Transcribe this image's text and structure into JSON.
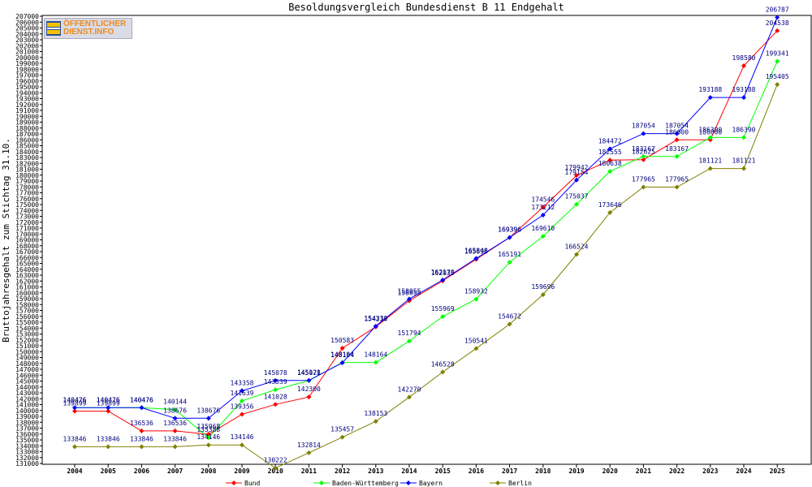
{
  "logo": {
    "line1": "ÖFFENTLICHER",
    "line2": "DIENST.INFO",
    "colors": {
      "text": "#f08a1c",
      "stripe_blue": "#2d4d9a",
      "stripe_yellow": "#f3c200",
      "stripe_white": "#ffffff"
    }
  },
  "chart_data": {
    "type": "line",
    "title": "Besoldungsvergleich Bundesdienst B 11 Endgehalt",
    "xlabel": "",
    "ylabel": "Bruttojahresgehalt zum Stichtag 31.10.",
    "x": [
      "2004",
      "2005",
      "2006",
      "2007",
      "2008",
      "2009",
      "2010",
      "2011",
      "2012",
      "2013",
      "2014",
      "2015",
      "2016",
      "2017",
      "2018",
      "2019",
      "2020",
      "2021",
      "2022",
      "2023",
      "2024",
      "2025"
    ],
    "ylim": [
      131000,
      207000
    ],
    "ytick_step": 1000,
    "grid": false,
    "legend_position": "bottom",
    "series": [
      {
        "name": "Bund",
        "color": "#ff0000",
        "values": [
          139899,
          139899,
          136536,
          136536,
          135968,
          139356,
          141028,
          142300,
          150583,
          154210,
          158655,
          162035,
          165696,
          169396,
          174546,
          179942,
          182555,
          182625,
          186000,
          186000,
          198580,
          204538
        ]
      },
      {
        "name": "Baden-Württemberg",
        "color": "#00ff00",
        "values": [
          140476,
          140476,
          140476,
          140144,
          135388,
          141639,
          143539,
          145078,
          148164,
          148164,
          151794,
          155969,
          158932,
          165191,
          169610,
          175037,
          180638,
          183167,
          183167,
          186390,
          186390,
          199341
        ]
      },
      {
        "name": "Bayern",
        "color": "#0000ff",
        "values": [
          140476,
          140476,
          140476,
          138676,
          138676,
          143358,
          145078,
          145121,
          148104,
          154333,
          158955,
          162170,
          165848,
          169396,
          173212,
          179154,
          184472,
          187054,
          187054,
          193188,
          193188,
          206787
        ]
      },
      {
        "name": "Berlin",
        "color": "#808000",
        "values": [
          133846,
          133846,
          133846,
          133846,
          134146,
          134146,
          130222,
          132814,
          135457,
          138153,
          142270,
          146528,
          150541,
          154672,
          159696,
          166524,
          173646,
          177965,
          177965,
          181121,
          181121,
          195405
        ]
      }
    ]
  }
}
